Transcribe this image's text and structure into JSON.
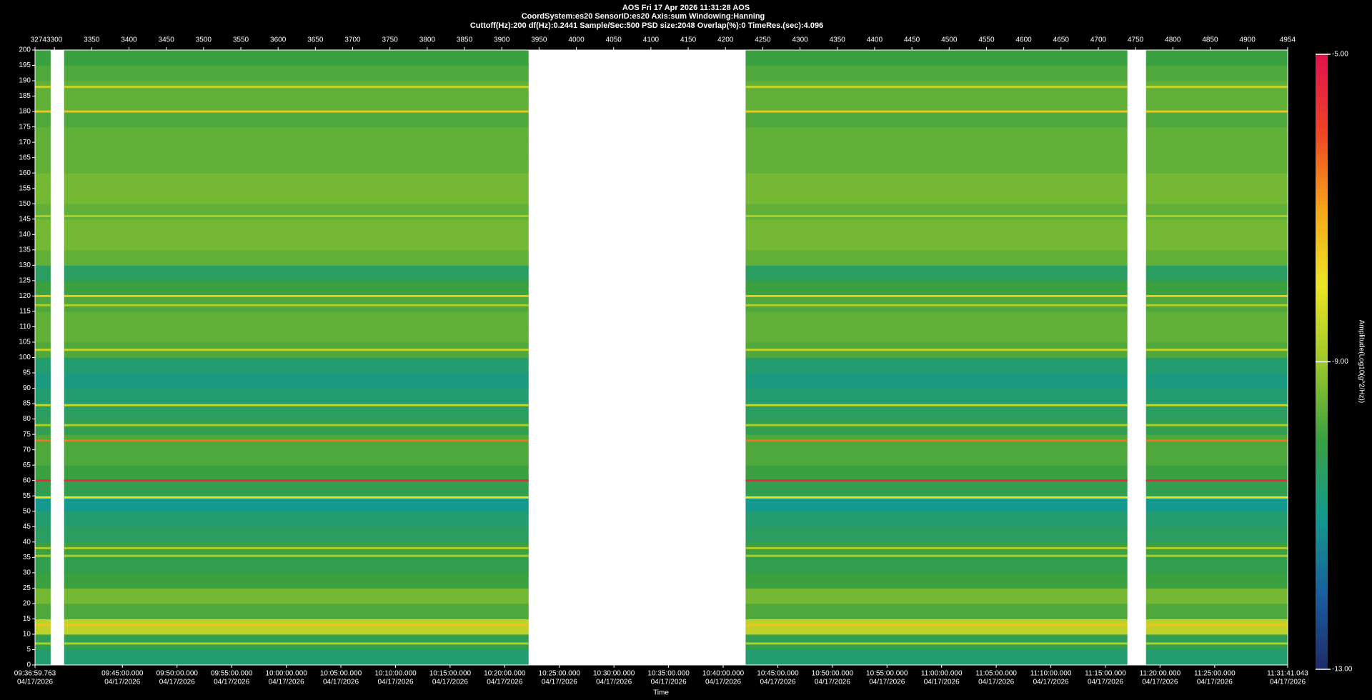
{
  "chart_data": {
    "type": "spectrogram",
    "title": "AOS  Fri 17 Apr 2026 11:31:28  AOS",
    "subtitle": "CoordSystem:es20   SensorID:es20   Axis:sum   Windowing:Hanning",
    "parameters": "Cuttoff(Hz):200     df(Hz):0.2441     Sample/Sec:500     PSD size:2048     Overlap(%):0     TimeRes.(sec):4.096",
    "xlabel": "Time",
    "colorbar_label": "Amplitude(Log10(g^2/Hz))",
    "xlim": [
      3274,
      4954
    ],
    "xticks": [
      3274,
      3300,
      3350,
      3400,
      3450,
      3500,
      3550,
      3600,
      3650,
      3700,
      3750,
      3800,
      3850,
      3900,
      3950,
      4000,
      4050,
      4100,
      4150,
      4200,
      4250,
      4300,
      4350,
      4400,
      4450,
      4500,
      4550,
      4600,
      4650,
      4700,
      4750,
      4800,
      4850,
      4900,
      4954
    ],
    "x2ticks": [
      {
        "value": 3274,
        "label": "09:36:59.763"
      },
      {
        "value": 3391.2,
        "label": "09:45:00.000"
      },
      {
        "value": 3464.5,
        "label": "09:50:00.000"
      },
      {
        "value": 3537.7,
        "label": "09:55:00.000"
      },
      {
        "value": 3611.0,
        "label": "10:00:00.000"
      },
      {
        "value": 3684.2,
        "label": "10:05:00.000"
      },
      {
        "value": 3757.5,
        "label": "10:10:00.000"
      },
      {
        "value": 3830.7,
        "label": "10:15:00.000"
      },
      {
        "value": 3903.9,
        "label": "10:20:00.000"
      },
      {
        "value": 3977.2,
        "label": "10:25:00.000"
      },
      {
        "value": 4050.4,
        "label": "10:30:00.000"
      },
      {
        "value": 4123.7,
        "label": "10:35:00.000"
      },
      {
        "value": 4196.9,
        "label": "10:40:00.000"
      },
      {
        "value": 4270.2,
        "label": "10:45:00.000"
      },
      {
        "value": 4343.4,
        "label": "10:50:00.000"
      },
      {
        "value": 4416.6,
        "label": "10:55:00.000"
      },
      {
        "value": 4489.9,
        "label": "11:00:00.000"
      },
      {
        "value": 4563.1,
        "label": "11:05:00.000"
      },
      {
        "value": 4636.4,
        "label": "11:10:00.000"
      },
      {
        "value": 4709.6,
        "label": "11:15:00.000"
      },
      {
        "value": 4782.8,
        "label": "11:20:00.000"
      },
      {
        "value": 4856.1,
        "label": "11:25:00.000"
      },
      {
        "value": 4954,
        "label": "11:31:41.043"
      }
    ],
    "x2_date": "04/17/2026",
    "ylim": [
      0,
      200
    ],
    "yticks": [
      0,
      5,
      10,
      15,
      20,
      25,
      30,
      35,
      40,
      45,
      50,
      55,
      60,
      65,
      70,
      75,
      80,
      85,
      90,
      95,
      100,
      105,
      110,
      115,
      120,
      125,
      130,
      135,
      140,
      145,
      150,
      155,
      160,
      165,
      170,
      175,
      180,
      185,
      190,
      195,
      200
    ],
    "segments": [
      [
        3274,
        3295
      ],
      [
        3313,
        3936
      ],
      [
        4227,
        4739
      ],
      [
        4764,
        4954
      ]
    ],
    "freq_bins": [
      0,
      5,
      10,
      15,
      20,
      25,
      30,
      35,
      40,
      45,
      50,
      55,
      60,
      65,
      70,
      75,
      80,
      85,
      90,
      95,
      100,
      105,
      110,
      115,
      120,
      125,
      130,
      135,
      140,
      145,
      150,
      155,
      160,
      165,
      170,
      175,
      180,
      185,
      190,
      195,
      200
    ],
    "amplitude": [
      -10.6,
      -10.2,
      -8.6,
      -9.8,
      -9.4,
      -10.0,
      -10.2,
      -10.0,
      -10.4,
      -10.6,
      -11.0,
      -10.2,
      -10.0,
      -9.8,
      -9.8,
      -10.2,
      -10.4,
      -10.6,
      -10.8,
      -10.6,
      -9.8,
      -9.6,
      -9.6,
      -9.8,
      -10.0,
      -10.4,
      -9.6,
      -9.4,
      -9.4,
      -9.6,
      -9.4,
      -9.4,
      -9.6,
      -9.6,
      -9.6,
      -9.8,
      -9.6,
      -9.6,
      -9.8,
      -10.0
    ],
    "line_freqs": [
      7,
      13,
      35.5,
      38,
      54.5,
      60,
      73,
      78,
      84.5,
      102.5,
      117,
      120,
      146,
      180,
      188
    ],
    "line_amplitude": [
      -8.8,
      -7.5,
      -8.8,
      -8.8,
      -8.0,
      -5.5,
      -6.5,
      -8.8,
      -8.5,
      -8.5,
      -8.8,
      -7.5,
      -8.8,
      -7.5,
      -8.5
    ],
    "clim": [
      -13,
      -5
    ],
    "cticks": [
      {
        "value": -13,
        "label": "-13.00"
      },
      {
        "value": -9,
        "label": "-9.00"
      },
      {
        "value": -5,
        "label": "-5.00"
      }
    ],
    "colormap": [
      "#1d2a6c",
      "#1a5f9e",
      "#14998f",
      "#3aa040",
      "#9cc82c",
      "#eee424",
      "#f4a51a",
      "#ee4424",
      "#e0124e"
    ]
  }
}
